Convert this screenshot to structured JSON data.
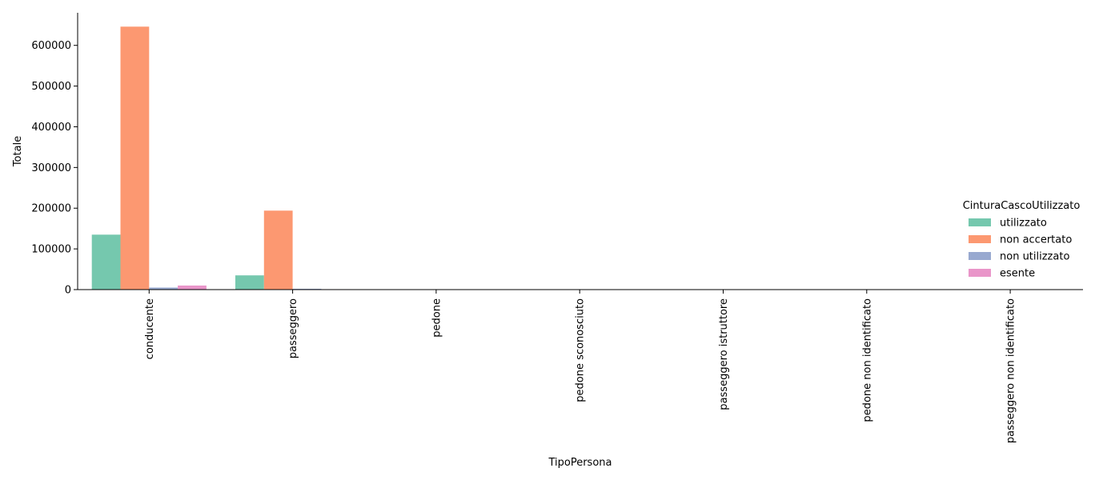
{
  "chart_data": {
    "type": "bar",
    "title": "",
    "xlabel": "TipoPersona",
    "ylabel": "Totale",
    "ylim": [
      0,
      680000
    ],
    "yticks": [
      0,
      100000,
      200000,
      300000,
      400000,
      500000,
      600000
    ],
    "categories": [
      "conducente",
      "passeggero",
      "pedone",
      "pedone sconosciuto",
      "passeggero istruttore",
      "pedone non identificato",
      "passeggero non identificato"
    ],
    "legend_title": "CinturaCascoUtilizzato",
    "legend_position": "right",
    "grid": false,
    "series": [
      {
        "name": "utilizzato",
        "color": "#66c2a5",
        "values": [
          135000,
          35000,
          0,
          0,
          0,
          0,
          0
        ]
      },
      {
        "name": "non accertato",
        "color": "#fc8d62",
        "values": [
          646000,
          194000,
          0,
          0,
          0,
          0,
          0
        ]
      },
      {
        "name": "non utilizzato",
        "color": "#8da0cb",
        "values": [
          5000,
          2000,
          0,
          0,
          0,
          0,
          0
        ]
      },
      {
        "name": "esente",
        "color": "#e78ac3",
        "values": [
          10000,
          1000,
          0,
          0,
          0,
          0,
          0
        ]
      }
    ]
  }
}
